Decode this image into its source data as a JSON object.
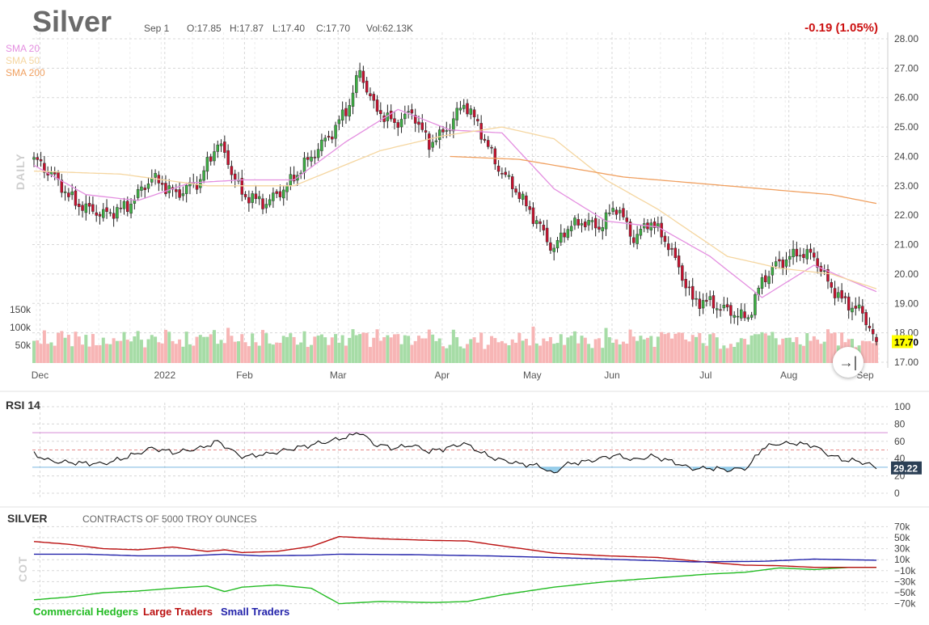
{
  "header": {
    "symbol": "Silver",
    "date": "Sep 1",
    "open": "O:17.85",
    "high": "H:17.87",
    "low": "L:17.40",
    "close": "C:17.70",
    "volume": "Vol:62.13K",
    "change": "-0.19 (1.05%)"
  },
  "sma_legend": [
    {
      "label": "SMA 20",
      "color": "#e48fe0"
    },
    {
      "label": "SMA 50",
      "color": "#f5d6a0"
    },
    {
      "label": "SMA 200",
      "color": "#f0a060"
    }
  ],
  "period_label": "DAILY",
  "goto_icon": "→|",
  "colors": {
    "up": "#3cb043",
    "down": "#c8102e",
    "vol_up": "#a6dca6",
    "vol_down": "#f7b5b5",
    "grid": "#d8d8d8"
  },
  "chart_data": [
    {
      "type": "candlestick",
      "title": "Silver",
      "x_tick_labels": [
        "Dec",
        "2022",
        "Feb",
        "Mar",
        "Apr",
        "May",
        "Jun",
        "Jul",
        "Aug",
        "Sep"
      ],
      "y_tick_labels": [
        "28.00",
        "27.00",
        "26.00",
        "25.00",
        "24.00",
        "23.00",
        "22.00",
        "21.00",
        "20.00",
        "19.00",
        "18.00",
        "17.00"
      ],
      "ylim": [
        17.0,
        28.0
      ],
      "last_price_label": "17.70",
      "volume_tick_labels": [
        "150k",
        "100k",
        "50k"
      ],
      "volume_ylim": [
        0,
        180000
      ],
      "close_anchors": [
        [
          0,
          23.9
        ],
        [
          5,
          23.4
        ],
        [
          12,
          22.4
        ],
        [
          20,
          22.0
        ],
        [
          27,
          22.3
        ],
        [
          34,
          23.3
        ],
        [
          41,
          22.7
        ],
        [
          48,
          23.2
        ],
        [
          53,
          24.5
        ],
        [
          56,
          23.8
        ],
        [
          60,
          22.7
        ],
        [
          67,
          22.4
        ],
        [
          73,
          23.0
        ],
        [
          80,
          24.0
        ],
        [
          86,
          24.8
        ],
        [
          91,
          25.8
        ],
        [
          94,
          26.9
        ],
        [
          98,
          25.7
        ],
        [
          104,
          25.1
        ],
        [
          109,
          25.5
        ],
        [
          114,
          24.4
        ],
        [
          119,
          24.9
        ],
        [
          124,
          25.8
        ],
        [
          128,
          25.1
        ],
        [
          133,
          23.8
        ],
        [
          140,
          22.7
        ],
        [
          146,
          21.6
        ],
        [
          150,
          20.8
        ],
        [
          153,
          21.5
        ],
        [
          158,
          21.8
        ],
        [
          163,
          21.6
        ],
        [
          168,
          22.3
        ],
        [
          173,
          21.2
        ],
        [
          178,
          21.8
        ],
        [
          183,
          21.0
        ],
        [
          190,
          19.1
        ],
        [
          195,
          19.0
        ],
        [
          201,
          18.7
        ],
        [
          206,
          18.5
        ],
        [
          210,
          19.8
        ],
        [
          214,
          20.3
        ],
        [
          220,
          20.7
        ],
        [
          225,
          20.6
        ],
        [
          229,
          19.7
        ],
        [
          234,
          19.0
        ],
        [
          238,
          18.8
        ],
        [
          241,
          18.2
        ],
        [
          243,
          17.7
        ]
      ],
      "sma20_anchors": [
        [
          0,
          23.7
        ],
        [
          15,
          22.7
        ],
        [
          30,
          22.5
        ],
        [
          45,
          23.1
        ],
        [
          60,
          23.2
        ],
        [
          75,
          23.2
        ],
        [
          90,
          24.5
        ],
        [
          105,
          25.6
        ],
        [
          120,
          24.9
        ],
        [
          135,
          24.8
        ],
        [
          150,
          22.9
        ],
        [
          165,
          21.8
        ],
        [
          180,
          21.6
        ],
        [
          195,
          20.6
        ],
        [
          210,
          19.2
        ],
        [
          225,
          20.3
        ],
        [
          243,
          19.4
        ]
      ],
      "sma50_anchors": [
        [
          0,
          23.5
        ],
        [
          25,
          23.4
        ],
        [
          50,
          23.0
        ],
        [
          75,
          23.0
        ],
        [
          100,
          24.2
        ],
        [
          118,
          24.7
        ],
        [
          135,
          25.0
        ],
        [
          150,
          24.6
        ],
        [
          165,
          23.2
        ],
        [
          180,
          22.2
        ],
        [
          200,
          20.6
        ],
        [
          215,
          20.2
        ],
        [
          230,
          20.0
        ],
        [
          243,
          19.5
        ]
      ],
      "sma200_anchors": [
        [
          120,
          24.0
        ],
        [
          140,
          23.9
        ],
        [
          170,
          23.3
        ],
        [
          200,
          23.0
        ],
        [
          230,
          22.7
        ],
        [
          243,
          22.4
        ]
      ]
    },
    {
      "type": "line",
      "title": "RSI 14",
      "y_tick_labels": [
        "100",
        "80",
        "60",
        "40",
        "20",
        "0"
      ],
      "ylim": [
        0,
        100
      ],
      "reference_lines": [
        70,
        50,
        30
      ],
      "last_value_label": "29.22",
      "anchors": [
        [
          0,
          45
        ],
        [
          5,
          37
        ],
        [
          12,
          35
        ],
        [
          20,
          34
        ],
        [
          27,
          42
        ],
        [
          34,
          52
        ],
        [
          41,
          47
        ],
        [
          48,
          52
        ],
        [
          53,
          60
        ],
        [
          56,
          52
        ],
        [
          60,
          42
        ],
        [
          67,
          45
        ],
        [
          73,
          50
        ],
        [
          80,
          56
        ],
        [
          86,
          61
        ],
        [
          91,
          66
        ],
        [
          94,
          71
        ],
        [
          98,
          57
        ],
        [
          104,
          52
        ],
        [
          109,
          56
        ],
        [
          114,
          48
        ],
        [
          119,
          52
        ],
        [
          124,
          58
        ],
        [
          128,
          49
        ],
        [
          133,
          40
        ],
        [
          140,
          34
        ],
        [
          146,
          31
        ],
        [
          150,
          22
        ],
        [
          153,
          33
        ],
        [
          158,
          36
        ],
        [
          163,
          40
        ],
        [
          168,
          44
        ],
        [
          173,
          38
        ],
        [
          178,
          43
        ],
        [
          183,
          38
        ],
        [
          190,
          28
        ],
        [
          195,
          29
        ],
        [
          201,
          27
        ],
        [
          206,
          30
        ],
        [
          210,
          52
        ],
        [
          214,
          57
        ],
        [
          220,
          58
        ],
        [
          225,
          55
        ],
        [
          229,
          45
        ],
        [
          234,
          38
        ],
        [
          238,
          37
        ],
        [
          241,
          33
        ],
        [
          243,
          29
        ]
      ]
    },
    {
      "type": "line",
      "title": "SILVER",
      "subtitle": "CONTRACTS OF 5000 TROY OUNCES",
      "vertical_label": "COT",
      "y_tick_labels": [
        "70k",
        "50k",
        "30k",
        "10k",
        "−10k",
        "−30k",
        "−50k",
        "−70k"
      ],
      "ylim": [
        -75000,
        75000
      ],
      "series": [
        {
          "name": "Commercial Hedgers",
          "color": "#22bb22",
          "anchors": [
            [
              0,
              -63000
            ],
            [
              10,
              -58000
            ],
            [
              20,
              -50000
            ],
            [
              30,
              -47000
            ],
            [
              40,
              -42000
            ],
            [
              50,
              -38000
            ],
            [
              55,
              -48000
            ],
            [
              60,
              -40000
            ],
            [
              70,
              -36000
            ],
            [
              80,
              -42000
            ],
            [
              88,
              -70000
            ],
            [
              100,
              -66000
            ],
            [
              115,
              -68000
            ],
            [
              125,
              -66000
            ],
            [
              135,
              -54000
            ],
            [
              150,
              -40000
            ],
            [
              165,
              -30000
            ],
            [
              180,
              -23000
            ],
            [
              195,
              -16000
            ],
            [
              205,
              -13000
            ],
            [
              215,
              -5000
            ],
            [
              225,
              -8000
            ],
            [
              235,
              -4000
            ],
            [
              243,
              -4000
            ]
          ]
        },
        {
          "name": "Large Traders",
          "color": "#bb1111",
          "anchors": [
            [
              0,
              43000
            ],
            [
              10,
              38000
            ],
            [
              20,
              30000
            ],
            [
              30,
              28000
            ],
            [
              40,
              33000
            ],
            [
              50,
              25000
            ],
            [
              55,
              28000
            ],
            [
              60,
              23000
            ],
            [
              70,
              25000
            ],
            [
              80,
              34000
            ],
            [
              88,
              52000
            ],
            [
              100,
              48000
            ],
            [
              115,
              45000
            ],
            [
              125,
              44000
            ],
            [
              135,
              35000
            ],
            [
              150,
              22000
            ],
            [
              165,
              17000
            ],
            [
              180,
              14000
            ],
            [
              195,
              5000
            ],
            [
              205,
              0
            ],
            [
              215,
              -1000
            ],
            [
              225,
              -4000
            ],
            [
              235,
              -4000
            ],
            [
              243,
              -4000
            ]
          ]
        },
        {
          "name": "Small Traders",
          "color": "#2222aa",
          "anchors": [
            [
              0,
              20000
            ],
            [
              15,
              20000
            ],
            [
              30,
              17000
            ],
            [
              45,
              17000
            ],
            [
              55,
              20000
            ],
            [
              65,
              17000
            ],
            [
              80,
              18000
            ],
            [
              88,
              20000
            ],
            [
              110,
              19000
            ],
            [
              130,
              17000
            ],
            [
              150,
              14000
            ],
            [
              170,
              10000
            ],
            [
              190,
              6000
            ],
            [
              210,
              7000
            ],
            [
              225,
              11000
            ],
            [
              243,
              9000
            ]
          ]
        }
      ]
    }
  ]
}
